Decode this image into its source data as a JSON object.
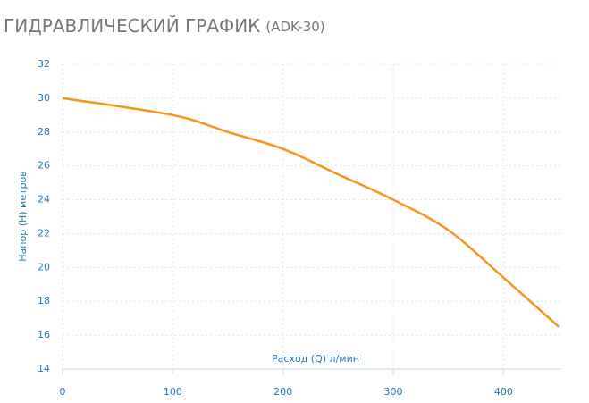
{
  "chart_data": {
    "type": "line",
    "title": "ГИДРАВЛИЧЕСКИЙ ГРАФИК",
    "subtitle": "(ADK-30)",
    "x_label": "Расход (Q) л/мин",
    "y_label": "Напор (H) метров",
    "x": [
      0,
      100,
      150,
      200,
      250,
      300,
      350,
      400,
      450
    ],
    "series": [
      {
        "name": "ADK-30",
        "color": "#f7941d",
        "values": [
          30,
          29,
          28,
          27,
          25.5,
          24,
          22.2,
          19.4,
          16.5
        ]
      }
    ],
    "xlim": [
      0,
      450
    ],
    "xticks": [
      0,
      100,
      200,
      300,
      400
    ],
    "ylim": [
      14,
      32
    ],
    "yticks": [
      14,
      16,
      18,
      20,
      22,
      24,
      26,
      28,
      30,
      32
    ],
    "grid": true
  }
}
